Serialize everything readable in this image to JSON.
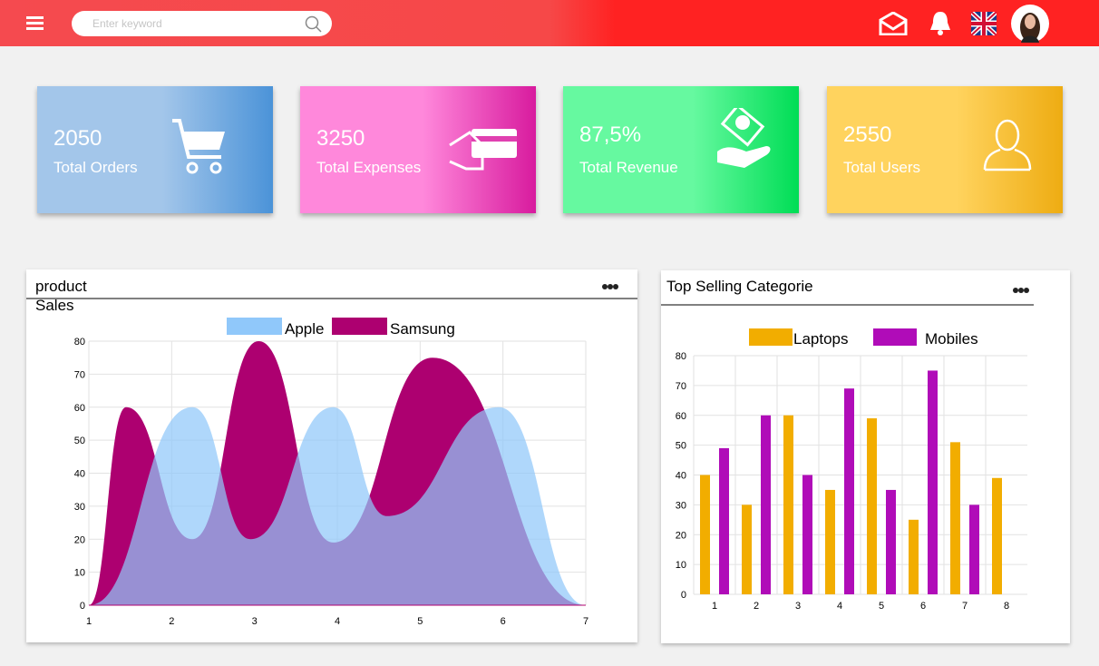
{
  "header": {
    "search_placeholder": "Enter keyword"
  },
  "cards": [
    {
      "value": "2050",
      "label": "Total Orders"
    },
    {
      "value": "3250",
      "label": "Total Expenses"
    },
    {
      "value": "87,5%",
      "label": "Total Revenue"
    },
    {
      "value": "2550",
      "label": "Total Users"
    }
  ],
  "chart_data": [
    {
      "type": "area",
      "title": "product Sales",
      "series": [
        {
          "name": "Apple",
          "color": "#90c8fa",
          "x": [
            1,
            2.25,
            2.95,
            3.95,
            4.6,
            5.95,
            7
          ],
          "values": [
            0,
            60,
            20,
            60,
            27,
            60,
            0
          ]
        },
        {
          "name": "Samsung",
          "color": "#ad0070",
          "x": [
            1,
            1.45,
            2.25,
            3.05,
            3.95,
            5.15,
            7
          ],
          "values": [
            0,
            60,
            20,
            80,
            19,
            75,
            0
          ]
        }
      ],
      "xlim": [
        1,
        7
      ],
      "xticks": [
        1,
        2,
        3,
        4,
        5,
        6,
        7
      ],
      "ylim": [
        0,
        80
      ],
      "yticks": [
        0,
        10,
        20,
        30,
        40,
        50,
        60,
        70,
        80
      ],
      "grid": true
    },
    {
      "type": "bar",
      "title": "Top Selling Categorie",
      "categories": [
        "1",
        "2",
        "3",
        "4",
        "5",
        "6",
        "7",
        "8"
      ],
      "series": [
        {
          "name": "Laptops",
          "color": "#f2ad00",
          "values": [
            40,
            30,
            60,
            35,
            59,
            25,
            51,
            39
          ]
        },
        {
          "name": "Mobiles",
          "color": "#b00cb8",
          "values": [
            49,
            60,
            40,
            69,
            35,
            75,
            30,
            null
          ]
        }
      ],
      "ylim": [
        0,
        80
      ],
      "yticks": [
        0,
        10,
        20,
        30,
        40,
        50,
        60,
        70,
        80
      ],
      "grid": true
    }
  ]
}
